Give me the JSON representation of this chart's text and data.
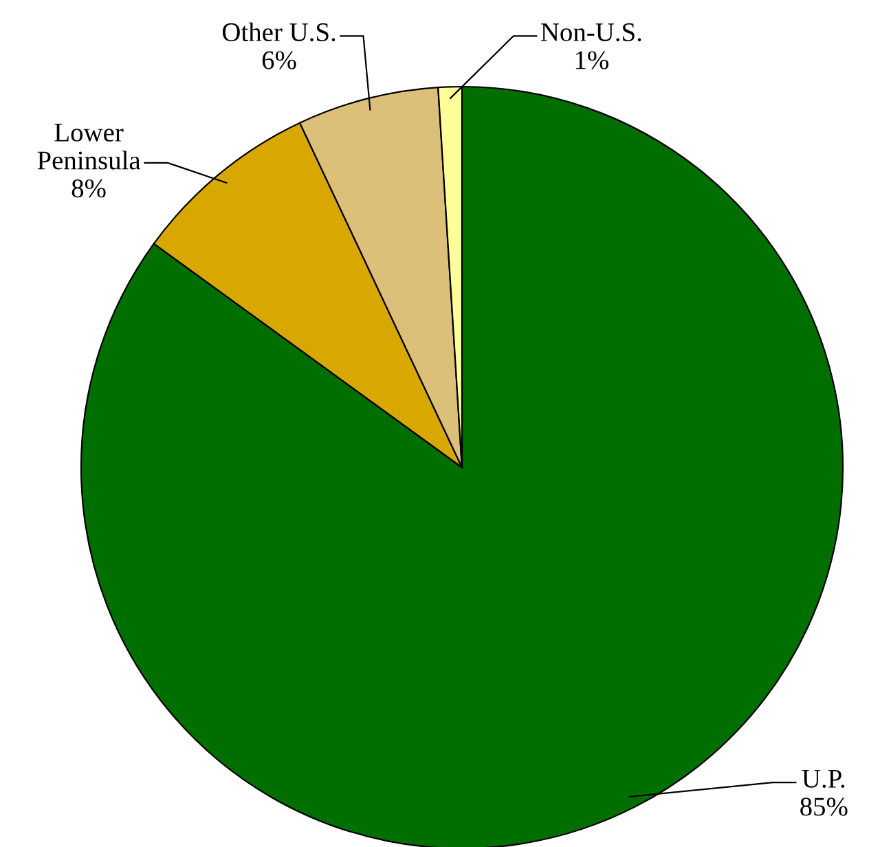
{
  "chart_data": {
    "type": "pie",
    "categories": [
      "U.P.",
      "Lower Peninsula",
      "Other U.S.",
      "Non-U.S."
    ],
    "values": [
      85,
      8,
      6,
      1
    ],
    "value_labels": [
      "85%",
      "8%",
      "6%",
      "1%"
    ],
    "colors": [
      "#006f00",
      "#d9a800",
      "#dcc07a",
      "#ffff99"
    ]
  }
}
